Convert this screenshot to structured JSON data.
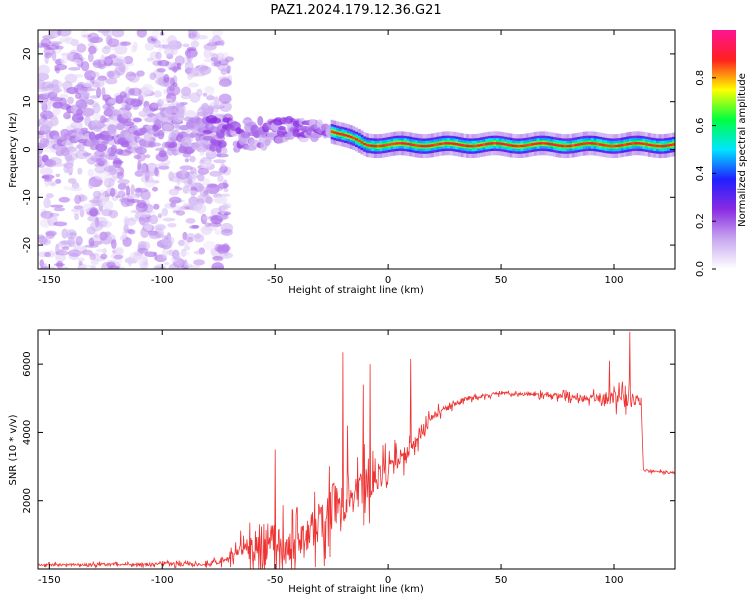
{
  "title": "PAZ1.2024.179.12.36.G21",
  "chart_data": [
    {
      "type": "heatmap",
      "xlabel": "Height of straight line (km)",
      "ylabel": "Frequency (Hz)",
      "xlim": [
        -155,
        127
      ],
      "ylim": [
        -25,
        25
      ],
      "xticks": [
        -150,
        -100,
        -50,
        0,
        50,
        100
      ],
      "yticks": [
        -20,
        -10,
        0,
        10,
        20
      ],
      "colorbar": {
        "label": "Normalized spectral amplitude",
        "ticks": [
          0.0,
          0.2,
          0.4,
          0.6,
          0.8
        ],
        "range": [
          0,
          1
        ],
        "colormap": [
          "#ffffff",
          "#c8a8f0",
          "#8a2be2",
          "#2020ff",
          "#00e5ff",
          "#00ff40",
          "#ffff00",
          "#ff2020",
          "#ff1493"
        ]
      },
      "ridge": [
        {
          "x": -150,
          "y": 5,
          "spread": 18
        },
        {
          "x": -120,
          "y": 5,
          "spread": 12
        },
        {
          "x": -100,
          "y": 4,
          "spread": 10
        },
        {
          "x": -80,
          "y": 3,
          "spread": 7
        },
        {
          "x": -60,
          "y": 3,
          "spread": 6
        },
        {
          "x": -40,
          "y": 4,
          "spread": 5
        },
        {
          "x": -25,
          "y": 4,
          "spread": 2
        },
        {
          "x": -10,
          "y": 1,
          "spread": 1
        },
        {
          "x": 0,
          "y": 1,
          "spread": 0.8
        },
        {
          "x": 20,
          "y": 1,
          "spread": 0.6
        },
        {
          "x": 60,
          "y": 1,
          "spread": 0.6
        },
        {
          "x": 100,
          "y": 1,
          "spread": 0.6
        },
        {
          "x": 127,
          "y": 1,
          "spread": 0.6
        }
      ]
    },
    {
      "type": "line",
      "xlabel": "Height of straight line (km)",
      "ylabel": "SNR (10 * v/v)",
      "xlim": [
        -155,
        127
      ],
      "ylim": [
        0,
        7000
      ],
      "xticks": [
        -150,
        -100,
        -50,
        0,
        50,
        100
      ],
      "yticks": [
        2000,
        4000,
        6000
      ],
      "color": "#ee3333",
      "envelope": [
        {
          "x": -155,
          "base": 120,
          "noise": 80
        },
        {
          "x": -80,
          "base": 150,
          "noise": 120
        },
        {
          "x": -70,
          "base": 300,
          "noise": 300
        },
        {
          "x": -55,
          "base": 800,
          "noise": 1500
        },
        {
          "x": -45,
          "base": 700,
          "noise": 1300
        },
        {
          "x": -35,
          "base": 900,
          "noise": 1000
        },
        {
          "x": -25,
          "base": 1800,
          "noise": 1800
        },
        {
          "x": -15,
          "base": 2200,
          "noise": 1500
        },
        {
          "x": 0,
          "base": 2900,
          "noise": 800
        },
        {
          "x": 10,
          "base": 3500,
          "noise": 500
        },
        {
          "x": 20,
          "base": 4500,
          "noise": 300
        },
        {
          "x": 35,
          "base": 5000,
          "noise": 150
        },
        {
          "x": 50,
          "base": 5150,
          "noise": 100
        },
        {
          "x": 70,
          "base": 5100,
          "noise": 150
        },
        {
          "x": 90,
          "base": 5000,
          "noise": 250
        },
        {
          "x": 105,
          "base": 5000,
          "noise": 700
        },
        {
          "x": 112,
          "base": 4900,
          "noise": 300
        },
        {
          "x": 113,
          "base": 2900,
          "noise": 80
        },
        {
          "x": 127,
          "base": 2800,
          "noise": 70
        }
      ],
      "spikes": [
        {
          "x": -20,
          "y": 6350
        },
        {
          "x": -18,
          "y": 4200
        },
        {
          "x": -8,
          "y": 6000
        },
        {
          "x": 10,
          "y": 6150
        },
        {
          "x": 107,
          "y": 6950
        },
        {
          "x": 98,
          "y": 6100
        },
        {
          "x": -50,
          "y": 3500
        },
        {
          "x": -11,
          "y": 5400
        }
      ]
    }
  ]
}
